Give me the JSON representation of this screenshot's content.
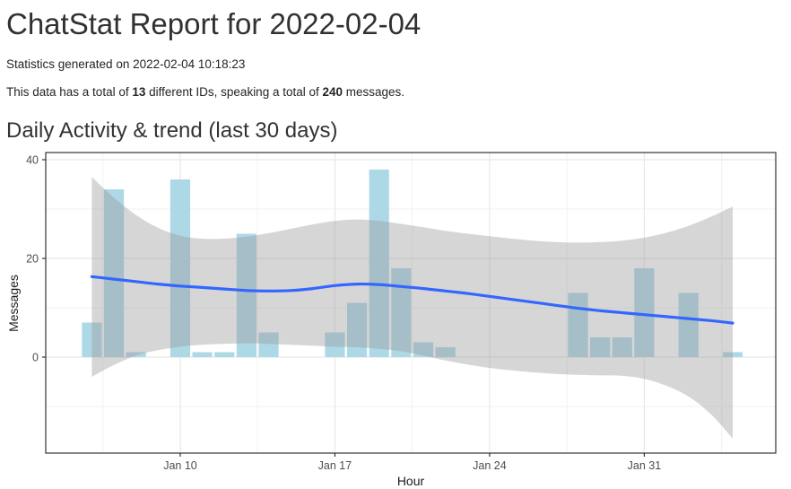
{
  "report": {
    "title": "ChatStat Report for 2022-02-04",
    "generated_line": "Statistics generated on 2022-02-04 10:18:23",
    "stats_prefix": "This data has a total of ",
    "stats_ids": "13",
    "stats_middle": " different IDs, speaking a total of ",
    "stats_messages": "240",
    "stats_suffix": " messages."
  },
  "section": {
    "heading": "Daily Activity & trend (last 30 days)"
  },
  "chart_data": {
    "type": "bar+line",
    "title": "Daily Activity & trend (last 30 days)",
    "xlabel": "Hour",
    "ylabel": "Messages",
    "x_tick_labels": [
      "Jan 10",
      "Jan 17",
      "Jan 24",
      "Jan 31"
    ],
    "y_ticks": [
      0,
      20,
      40
    ],
    "ylim": [
      -19.5,
      41.5
    ],
    "grid": true,
    "legend": "none",
    "categories": [
      "Jan 6",
      "Jan 7",
      "Jan 8",
      "Jan 9",
      "Jan 10",
      "Jan 11",
      "Jan 12",
      "Jan 13",
      "Jan 14",
      "Jan 15",
      "Jan 16",
      "Jan 17",
      "Jan 18",
      "Jan 19",
      "Jan 20",
      "Jan 21",
      "Jan 22",
      "Jan 23",
      "Jan 24",
      "Jan 25",
      "Jan 26",
      "Jan 27",
      "Jan 28",
      "Jan 29",
      "Jan 30",
      "Jan 31",
      "Feb 1",
      "Feb 2",
      "Feb 3",
      "Feb 4"
    ],
    "series": [
      {
        "name": "messages_per_day",
        "kind": "bar",
        "values": [
          7,
          34,
          1,
          0,
          36,
          1,
          1,
          25,
          5,
          0,
          0,
          5,
          11,
          38,
          18,
          3,
          2,
          0,
          0,
          0,
          0,
          0,
          13,
          4,
          4,
          18,
          0,
          13,
          0,
          1
        ]
      },
      {
        "name": "loess_trend",
        "kind": "line",
        "values": [
          16.3,
          15.8,
          15.3,
          14.8,
          14.4,
          14.1,
          13.8,
          13.5,
          13.4,
          13.5,
          13.9,
          14.5,
          14.8,
          14.7,
          14.3,
          13.9,
          13.4,
          12.9,
          12.3,
          11.7,
          11.1,
          10.5,
          9.9,
          9.4,
          9.0,
          8.6,
          8.2,
          7.8,
          7.4,
          6.9
        ]
      },
      {
        "name": "confidence_band_upper",
        "kind": "band-edge",
        "values": [
          36.5,
          32.3,
          28.8,
          26.2,
          24.6,
          24.0,
          24.0,
          24.4,
          25.1,
          26.0,
          26.9,
          27.6,
          27.9,
          27.6,
          27.0,
          26.3,
          25.6,
          25.0,
          24.5,
          24.0,
          23.6,
          23.3,
          23.2,
          23.3,
          23.6,
          24.2,
          25.2,
          26.6,
          28.4,
          30.5
        ]
      },
      {
        "name": "confidence_band_lower",
        "kind": "band-edge",
        "values": [
          -4.0,
          -1.6,
          0.3,
          1.4,
          2.1,
          2.5,
          2.7,
          2.8,
          2.7,
          2.5,
          2.3,
          2.1,
          2.0,
          1.7,
          1.2,
          0.3,
          -0.7,
          -1.5,
          -2.2,
          -2.7,
          -3.1,
          -3.4,
          -3.6,
          -3.7,
          -3.8,
          -4.4,
          -5.8,
          -8.0,
          -11.5,
          -16.5
        ]
      }
    ],
    "colors": {
      "bar": "#add8e6",
      "line": "#3366ff",
      "band": "#999999",
      "band_opacity": 0.4,
      "grid_major": "#e8e8e8",
      "grid_minor": "#f4f4f4",
      "panel_border": "#333333",
      "tick_mark": "#333333",
      "tick_text": "#4d4d4d",
      "axis_title": "#1a1a1a"
    }
  }
}
